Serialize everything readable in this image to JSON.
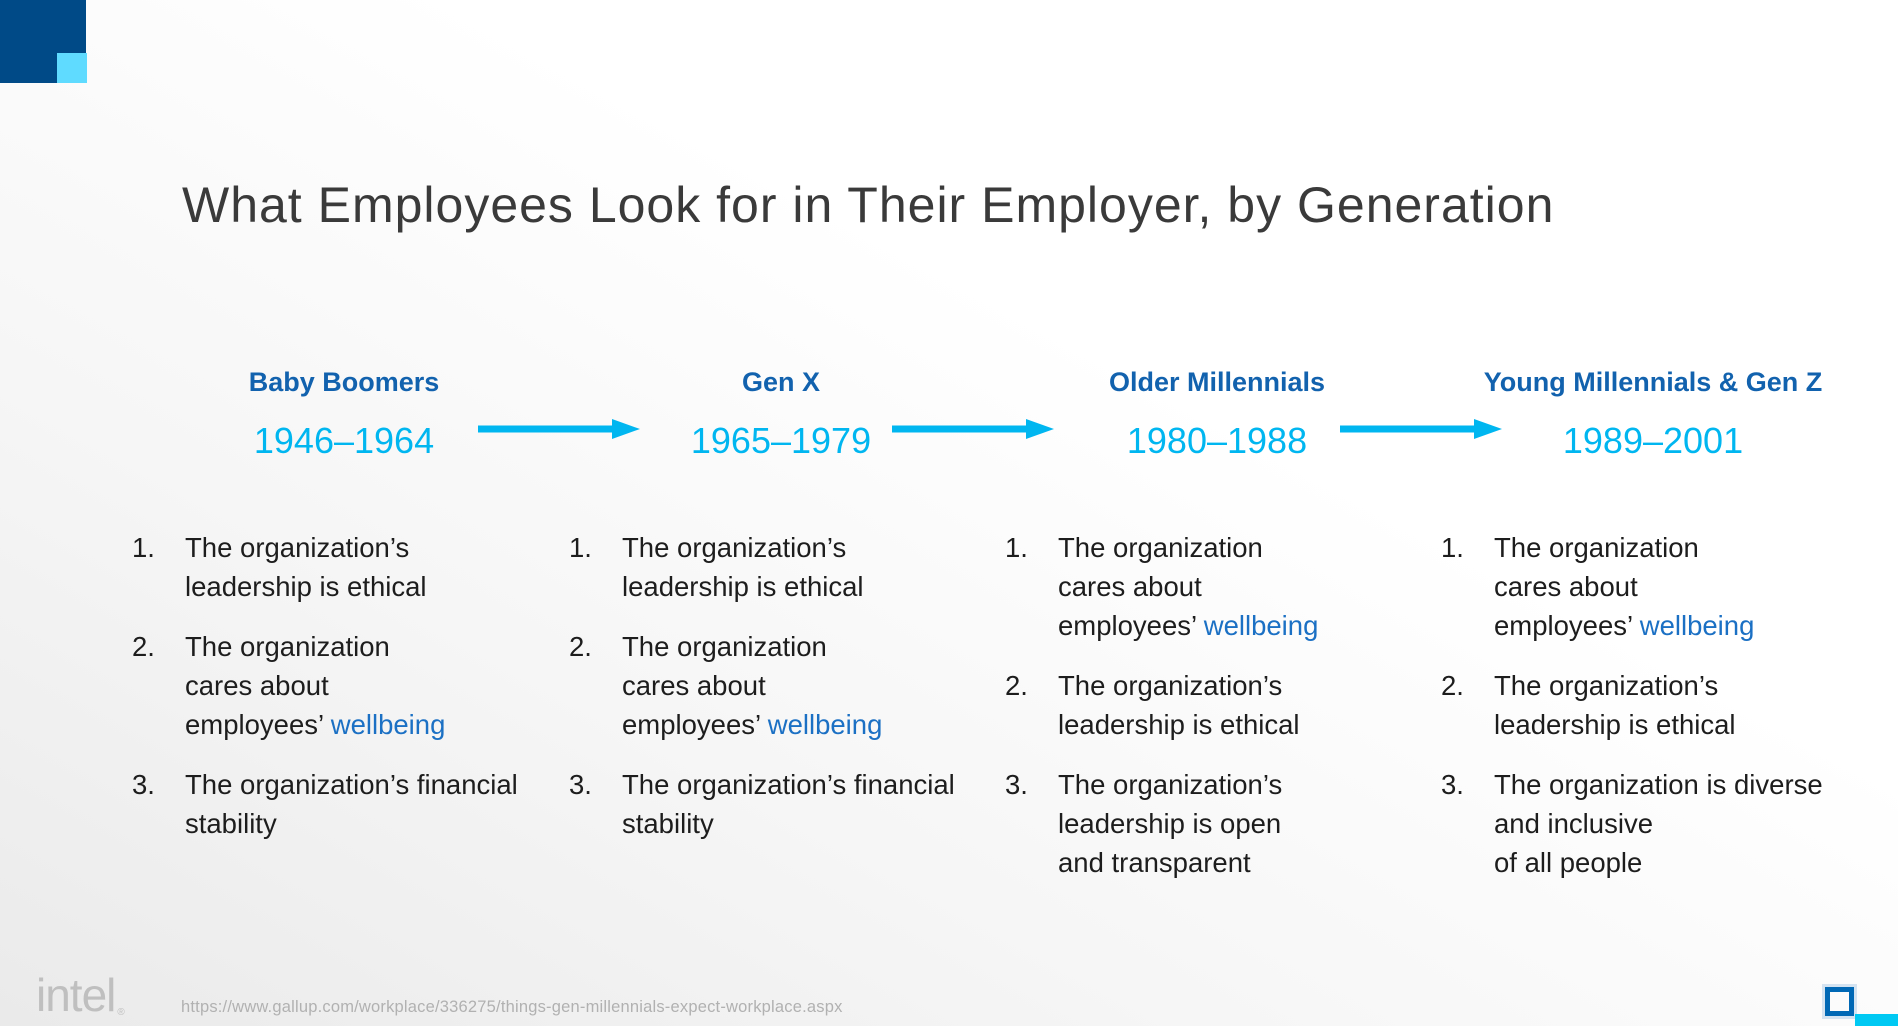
{
  "slide": {
    "title": "What Employees Look for in Their Employer, by Generation"
  },
  "columns": [
    {
      "name": "Baby Boomers",
      "years": "1946–1964",
      "items": [
        {
          "number": "1.",
          "lines": [
            [
              {
                "t": "The organization’s"
              }
            ],
            [
              {
                "t": "leadership is ethical"
              }
            ]
          ]
        },
        {
          "number": "2.",
          "lines": [
            [
              {
                "t": "The organization"
              }
            ],
            [
              {
                "t": "cares about"
              }
            ],
            [
              {
                "t": "employees’ "
              },
              {
                "t": "wellbeing",
                "accent": true
              }
            ]
          ]
        },
        {
          "number": "3.",
          "lines": [
            [
              {
                "t": "The organization’s financial"
              }
            ],
            [
              {
                "t": "stability"
              }
            ]
          ]
        }
      ]
    },
    {
      "name": "Gen X",
      "years": "1965–1979",
      "items": [
        {
          "number": "1.",
          "lines": [
            [
              {
                "t": "The organization’s"
              }
            ],
            [
              {
                "t": "leadership is ethical"
              }
            ]
          ]
        },
        {
          "number": "2.",
          "lines": [
            [
              {
                "t": "The organization"
              }
            ],
            [
              {
                "t": "cares about"
              }
            ],
            [
              {
                "t": "employees’ "
              },
              {
                "t": "wellbeing",
                "accent": true
              }
            ]
          ]
        },
        {
          "number": "3.",
          "lines": [
            [
              {
                "t": "The organization’s financial"
              }
            ],
            [
              {
                "t": "stability"
              }
            ]
          ]
        }
      ]
    },
    {
      "name": "Older Millennials",
      "years": "1980–1988",
      "items": [
        {
          "number": "1.",
          "lines": [
            [
              {
                "t": "The organization"
              }
            ],
            [
              {
                "t": "cares about"
              }
            ],
            [
              {
                "t": "employees’ "
              },
              {
                "t": "wellbeing",
                "accent": true
              }
            ]
          ]
        },
        {
          "number": "2.",
          "lines": [
            [
              {
                "t": "The organization’s"
              }
            ],
            [
              {
                "t": "leadership is ethical"
              }
            ]
          ]
        },
        {
          "number": "3.",
          "lines": [
            [
              {
                "t": "The organization’s"
              }
            ],
            [
              {
                "t": "leadership is open"
              }
            ],
            [
              {
                "t": "and transparent"
              }
            ]
          ]
        }
      ]
    },
    {
      "name": "Young Millennials & Gen Z",
      "years": "1989–2001",
      "items": [
        {
          "number": "1.",
          "lines": [
            [
              {
                "t": "The organization"
              }
            ],
            [
              {
                "t": "cares about"
              }
            ],
            [
              {
                "t": "employees’ "
              },
              {
                "t": "wellbeing",
                "accent": true
              }
            ]
          ]
        },
        {
          "number": "2.",
          "lines": [
            [
              {
                "t": "The organization’s"
              }
            ],
            [
              {
                "t": "leadership is ethical"
              }
            ]
          ]
        },
        {
          "number": "3.",
          "lines": [
            [
              {
                "t": "The organization is diverse"
              }
            ],
            [
              {
                "t": "and inclusive"
              }
            ],
            [
              {
                "t": "of all people"
              }
            ]
          ]
        }
      ]
    }
  ],
  "footer": {
    "brand": "intel",
    "registered_mark": "®",
    "source_url": "https://www.gallup.com/workplace/336275/things-gen-millennials-expect-workplace.aspx"
  },
  "icons": {
    "flow-arrow-icon": "right-pointing cyan arrow between generations",
    "outline-square-icon": "blue outlined square",
    "dark-blue-square": "solid dark blue square",
    "cyan-square": "solid light cyan square",
    "cyan-corner-strip": "cyan rectangle in bottom-right corner"
  },
  "colors": {
    "dark_blue": "#004A87",
    "corner_cyan": "#5FDBFF",
    "accent_cyan": "#00B6F0",
    "header_blue": "#1262AE",
    "wellbeing_blue": "#1B70C4",
    "outline_square_blue": "#0068B5",
    "strip_cyan": "#00C9F3",
    "title_gray": "#3a3a3a",
    "body_text": "#1d1d1d",
    "footer_gray": "#b1b1b1"
  }
}
